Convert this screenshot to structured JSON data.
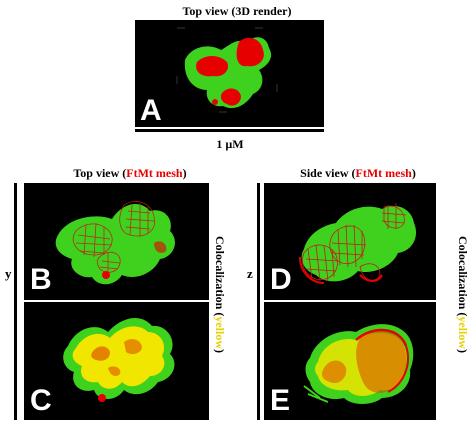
{
  "top": {
    "title": "Top view (3D render)",
    "panel_letter": "A",
    "scale_label": "1 µM"
  },
  "left_group": {
    "title_prefix": "Top view (",
    "title_highlight": "FtMt mesh",
    "title_suffix": ")",
    "axis_label": "y",
    "panels": [
      {
        "letter": "B"
      },
      {
        "letter": "C"
      }
    ],
    "side_label_prefix": "Colocalization (",
    "side_label_highlight": "yellow",
    "side_label_suffix": ")"
  },
  "right_group": {
    "title_prefix": "Side view (",
    "title_highlight": "FtMt mesh",
    "title_suffix": ")",
    "axis_label": "z",
    "panels": [
      {
        "letter": "D"
      },
      {
        "letter": "E"
      }
    ],
    "side_label_prefix": "Colocalization (",
    "side_label_highlight": "yellow",
    "side_label_suffix": ")"
  },
  "colors": {
    "background": "#000000",
    "green": "#3ed21e",
    "red": "#e60000",
    "yellow": "#f0e600",
    "mesh": "#c41a1a"
  }
}
